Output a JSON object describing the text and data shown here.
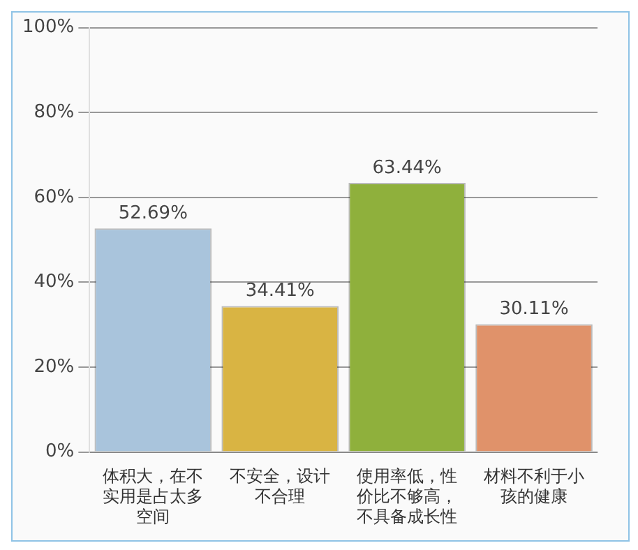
{
  "chart_data": {
    "type": "bar",
    "categories": [
      "体积大，在不实用是占太多空间",
      "不安全，设计不合理",
      "使用率低，性价比不够高，不具备成长性",
      "材料不利于小孩的健康"
    ],
    "values": [
      52.69,
      34.41,
      63.44,
      30.11
    ],
    "colors": [
      "#a9c4dc",
      "#d9b443",
      "#8fb03c",
      "#e0926a"
    ],
    "ylim": [
      0,
      100
    ],
    "yticks": [
      {
        "value": 0,
        "label": "0%"
      },
      {
        "value": 20,
        "label": "20%"
      },
      {
        "value": 40,
        "label": "40%"
      },
      {
        "value": 60,
        "label": "60%"
      },
      {
        "value": 80,
        "label": "80%"
      },
      {
        "value": 100,
        "label": "100%"
      }
    ],
    "value_labels": [
      "52.69%",
      "34.41%",
      "63.44%",
      "30.11%"
    ],
    "grid": "y",
    "legend": false
  }
}
